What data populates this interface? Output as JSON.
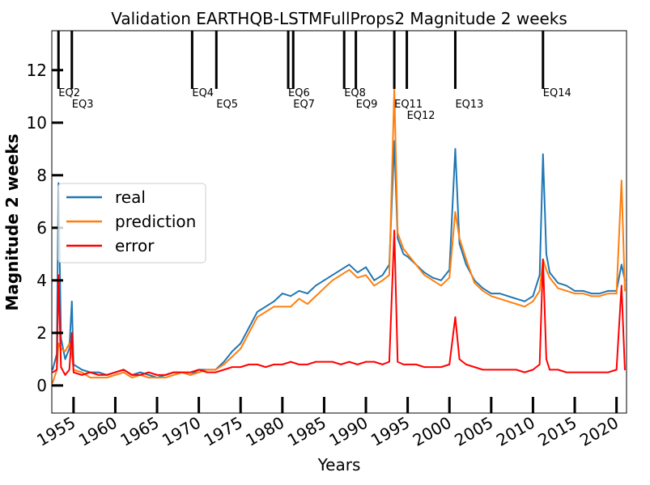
{
  "chart_data": {
    "type": "line",
    "title": "Validation  EARTHQB-LSTMFullProps2 Magnitude 2 weeks",
    "xlabel": "Years",
    "ylabel": "Magnitude 2 weeks",
    "xlim": [
      1952.4,
      2021.2
    ],
    "ylim": [
      -1.05,
      13.5
    ],
    "x_ticks": [
      1955,
      1960,
      1965,
      1970,
      1975,
      1980,
      1985,
      1990,
      1995,
      2000,
      2005,
      2010,
      2015,
      2020
    ],
    "x_tick_labels": [
      "1955",
      "1960",
      "1965",
      "1970",
      "1975",
      "1980",
      "1985",
      "1990",
      "1995",
      "2000",
      "2005",
      "2010",
      "2015",
      "2020"
    ],
    "y_ticks": [
      0,
      2,
      4,
      6,
      8,
      10,
      12
    ],
    "y_tick_labels": [
      "0",
      "2",
      "4",
      "6",
      "8",
      "10",
      "12"
    ],
    "legend_position": "center-left",
    "grid": false,
    "earthquakes": [
      {
        "label": "EQ2",
        "year": 1953.2
      },
      {
        "label": "EQ3",
        "year": 1954.8
      },
      {
        "label": "EQ4",
        "year": 1969.2
      },
      {
        "label": "EQ5",
        "year": 1972.1
      },
      {
        "label": "EQ6",
        "year": 1980.7
      },
      {
        "label": "EQ7",
        "year": 1981.3
      },
      {
        "label": "EQ8",
        "year": 1987.4
      },
      {
        "label": "EQ9",
        "year": 1988.8
      },
      {
        "label": "EQ11",
        "year": 1993.4
      },
      {
        "label": "EQ12",
        "year": 1994.9
      },
      {
        "label": "EQ13",
        "year": 2000.7
      },
      {
        "label": "EQ14",
        "year": 2011.2
      }
    ],
    "series": [
      {
        "name": "real",
        "color": "#1f77b4",
        "x": [
          1952.5,
          1953.0,
          1953.2,
          1953.5,
          1954.0,
          1954.5,
          1954.8,
          1955.0,
          1956.0,
          1957.0,
          1958.0,
          1959.0,
          1960.0,
          1961.0,
          1962.0,
          1963.0,
          1964.0,
          1965.0,
          1966.0,
          1967.0,
          1968.0,
          1969.0,
          1970.0,
          1971.0,
          1972.0,
          1973.0,
          1974.0,
          1975.0,
          1976.0,
          1977.0,
          1978.0,
          1979.0,
          1980.0,
          1981.0,
          1982.0,
          1983.0,
          1984.0,
          1985.0,
          1986.0,
          1987.0,
          1988.0,
          1989.0,
          1990.0,
          1991.0,
          1992.0,
          1992.8,
          1993.4,
          1993.8,
          1994.5,
          1995.0,
          1996.0,
          1997.0,
          1998.0,
          1999.0,
          2000.0,
          2000.7,
          2001.2,
          2002.0,
          2003.0,
          2004.0,
          2005.0,
          2006.0,
          2007.0,
          2008.0,
          2009.0,
          2010.0,
          2010.8,
          2011.2,
          2011.6,
          2012.0,
          2013.0,
          2014.0,
          2015.0,
          2016.0,
          2017.0,
          2018.0,
          2019.0,
          2020.0,
          2020.6,
          2021.0
        ],
        "y": [
          0.6,
          1.2,
          7.7,
          1.8,
          1.0,
          1.4,
          3.2,
          0.8,
          0.6,
          0.5,
          0.5,
          0.4,
          0.5,
          0.6,
          0.4,
          0.5,
          0.4,
          0.3,
          0.4,
          0.5,
          0.5,
          0.4,
          0.6,
          0.6,
          0.6,
          0.9,
          1.3,
          1.6,
          2.2,
          2.8,
          3.0,
          3.2,
          3.5,
          3.4,
          3.6,
          3.5,
          3.8,
          4.0,
          4.2,
          4.4,
          4.6,
          4.3,
          4.5,
          4.0,
          4.2,
          4.6,
          9.3,
          5.6,
          5.0,
          4.9,
          4.6,
          4.3,
          4.1,
          4.0,
          4.4,
          9.0,
          5.4,
          4.6,
          4.0,
          3.7,
          3.5,
          3.5,
          3.4,
          3.3,
          3.2,
          3.4,
          4.2,
          8.8,
          5.0,
          4.3,
          3.9,
          3.8,
          3.6,
          3.6,
          3.5,
          3.5,
          3.6,
          3.6,
          4.6,
          4.0
        ]
      },
      {
        "name": "prediction",
        "color": "#ff7f0e",
        "x": [
          1952.5,
          1953.0,
          1953.2,
          1953.5,
          1954.0,
          1954.5,
          1954.8,
          1955.0,
          1956.0,
          1957.0,
          1958.0,
          1959.0,
          1960.0,
          1961.0,
          1962.0,
          1963.0,
          1964.0,
          1965.0,
          1966.0,
          1967.0,
          1968.0,
          1969.0,
          1970.0,
          1971.0,
          1972.0,
          1973.0,
          1974.0,
          1975.0,
          1976.0,
          1977.0,
          1978.0,
          1979.0,
          1980.0,
          1981.0,
          1982.0,
          1983.0,
          1984.0,
          1985.0,
          1986.0,
          1987.0,
          1988.0,
          1989.0,
          1990.0,
          1991.0,
          1992.0,
          1992.8,
          1993.4,
          1993.8,
          1994.5,
          1995.0,
          1996.0,
          1997.0,
          1998.0,
          1999.0,
          2000.0,
          2000.7,
          2001.2,
          2002.0,
          2003.0,
          2004.0,
          2005.0,
          2006.0,
          2007.0,
          2008.0,
          2009.0,
          2010.0,
          2010.8,
          2011.2,
          2011.6,
          2012.0,
          2013.0,
          2014.0,
          2015.0,
          2016.0,
          2017.0,
          2018.0,
          2019.0,
          2020.0,
          2020.6,
          2021.0
        ],
        "y": [
          0.1,
          0.6,
          1.6,
          1.4,
          1.3,
          1.6,
          1.2,
          0.6,
          0.5,
          0.3,
          0.3,
          0.3,
          0.4,
          0.5,
          0.3,
          0.4,
          0.3,
          0.3,
          0.3,
          0.4,
          0.5,
          0.4,
          0.5,
          0.6,
          0.6,
          0.8,
          1.1,
          1.4,
          2.0,
          2.6,
          2.8,
          3.0,
          3.0,
          3.0,
          3.3,
          3.1,
          3.4,
          3.7,
          4.0,
          4.2,
          4.4,
          4.1,
          4.2,
          3.8,
          4.0,
          4.2,
          11.3,
          5.8,
          5.2,
          5.0,
          4.6,
          4.2,
          4.0,
          3.8,
          4.1,
          6.6,
          5.6,
          4.8,
          3.9,
          3.6,
          3.4,
          3.3,
          3.2,
          3.1,
          3.0,
          3.2,
          3.6,
          4.8,
          4.4,
          4.1,
          3.7,
          3.6,
          3.5,
          3.5,
          3.4,
          3.4,
          3.5,
          3.5,
          7.8,
          3.6
        ]
      },
      {
        "name": "error",
        "color": "#ff0000",
        "x": [
          1952.5,
          1953.0,
          1953.2,
          1953.5,
          1954.0,
          1954.5,
          1954.8,
          1955.0,
          1956.0,
          1957.0,
          1958.0,
          1959.0,
          1960.0,
          1961.0,
          1962.0,
          1963.0,
          1964.0,
          1965.0,
          1966.0,
          1967.0,
          1968.0,
          1969.0,
          1970.0,
          1971.0,
          1972.0,
          1973.0,
          1974.0,
          1975.0,
          1976.0,
          1977.0,
          1978.0,
          1979.0,
          1980.0,
          1981.0,
          1982.0,
          1983.0,
          1984.0,
          1985.0,
          1986.0,
          1987.0,
          1988.0,
          1989.0,
          1990.0,
          1991.0,
          1992.0,
          1992.8,
          1993.4,
          1993.8,
          1994.5,
          1995.0,
          1996.0,
          1997.0,
          1998.0,
          1999.0,
          2000.0,
          2000.7,
          2001.2,
          2002.0,
          2003.0,
          2004.0,
          2005.0,
          2006.0,
          2007.0,
          2008.0,
          2009.0,
          2010.0,
          2010.8,
          2011.2,
          2011.6,
          2012.0,
          2013.0,
          2014.0,
          2015.0,
          2016.0,
          2017.0,
          2018.0,
          2019.0,
          2020.0,
          2020.6,
          2021.0
        ],
        "y": [
          0.5,
          0.6,
          4.2,
          0.7,
          0.4,
          0.6,
          2.0,
          0.5,
          0.4,
          0.5,
          0.4,
          0.4,
          0.5,
          0.6,
          0.4,
          0.4,
          0.5,
          0.4,
          0.4,
          0.5,
          0.5,
          0.5,
          0.6,
          0.5,
          0.5,
          0.6,
          0.7,
          0.7,
          0.8,
          0.8,
          0.7,
          0.8,
          0.8,
          0.9,
          0.8,
          0.8,
          0.9,
          0.9,
          0.9,
          0.8,
          0.9,
          0.8,
          0.9,
          0.9,
          0.8,
          0.9,
          5.9,
          0.9,
          0.8,
          0.8,
          0.8,
          0.7,
          0.7,
          0.7,
          0.8,
          2.6,
          1.0,
          0.8,
          0.7,
          0.6,
          0.6,
          0.6,
          0.6,
          0.6,
          0.5,
          0.6,
          0.8,
          4.8,
          1.0,
          0.6,
          0.6,
          0.5,
          0.5,
          0.5,
          0.5,
          0.5,
          0.5,
          0.6,
          3.8,
          0.6
        ]
      }
    ]
  }
}
